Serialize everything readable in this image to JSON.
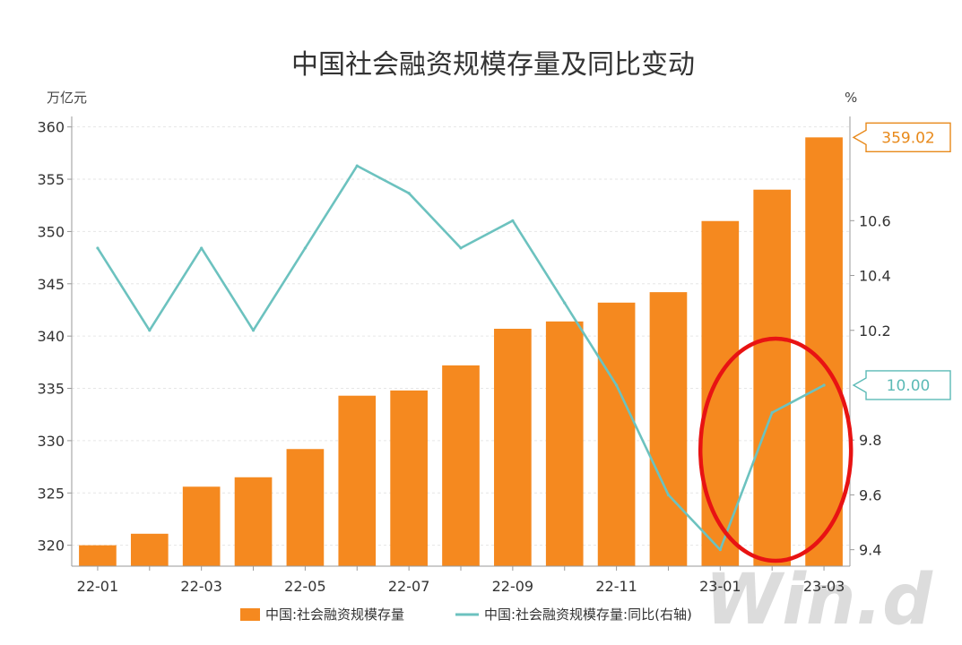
{
  "chart_data": {
    "type": "bar",
    "title": "中国社会融资规模存量及同比变动",
    "left_unit": "万亿元",
    "right_unit": "%",
    "x_tick_labels": [
      "22-01",
      "22-03",
      "22-05",
      "22-07",
      "22-09",
      "22-11",
      "23-01",
      "23-03"
    ],
    "categories": [
      "22-01",
      "22-02",
      "22-03",
      "22-04",
      "22-05",
      "22-06",
      "22-07",
      "22-08",
      "22-09",
      "22-10",
      "22-11",
      "22-12",
      "23-01",
      "23-02",
      "23-03"
    ],
    "left_axis": {
      "ylim": [
        318,
        361
      ],
      "ticks": [
        320,
        325,
        330,
        335,
        340,
        345,
        350,
        355,
        360
      ]
    },
    "right_axis": {
      "ylim": [
        9.34,
        10.98
      ],
      "ticks": [
        9.4,
        9.6,
        9.8,
        10.2,
        10.4,
        10.6
      ]
    },
    "series": [
      {
        "name": "中国:社会融资规模存量",
        "type": "bar",
        "axis": "left",
        "color": "#f5891f",
        "values": [
          320.0,
          321.1,
          325.6,
          326.5,
          329.2,
          334.3,
          334.8,
          337.2,
          340.7,
          341.4,
          343.2,
          344.2,
          351.0,
          354.0,
          359.0
        ]
      },
      {
        "name": "中国:社会融资规模存量:同比(右轴)",
        "type": "line",
        "axis": "right",
        "color": "#6cc2bf",
        "values": [
          10.5,
          10.2,
          10.5,
          10.2,
          10.5,
          10.8,
          10.7,
          10.5,
          10.6,
          10.3,
          10.0,
          9.6,
          9.4,
          9.9,
          10.0
        ]
      }
    ],
    "callouts": [
      {
        "text": "359.02",
        "series": 0,
        "color": "#e8891a"
      },
      {
        "text": "10.00",
        "series": 1,
        "color": "#5bbab6"
      }
    ],
    "annotation": {
      "shape": "ellipse",
      "color": "#e81313"
    },
    "watermark": "Win.d",
    "grid": true,
    "legend": "bottom"
  }
}
